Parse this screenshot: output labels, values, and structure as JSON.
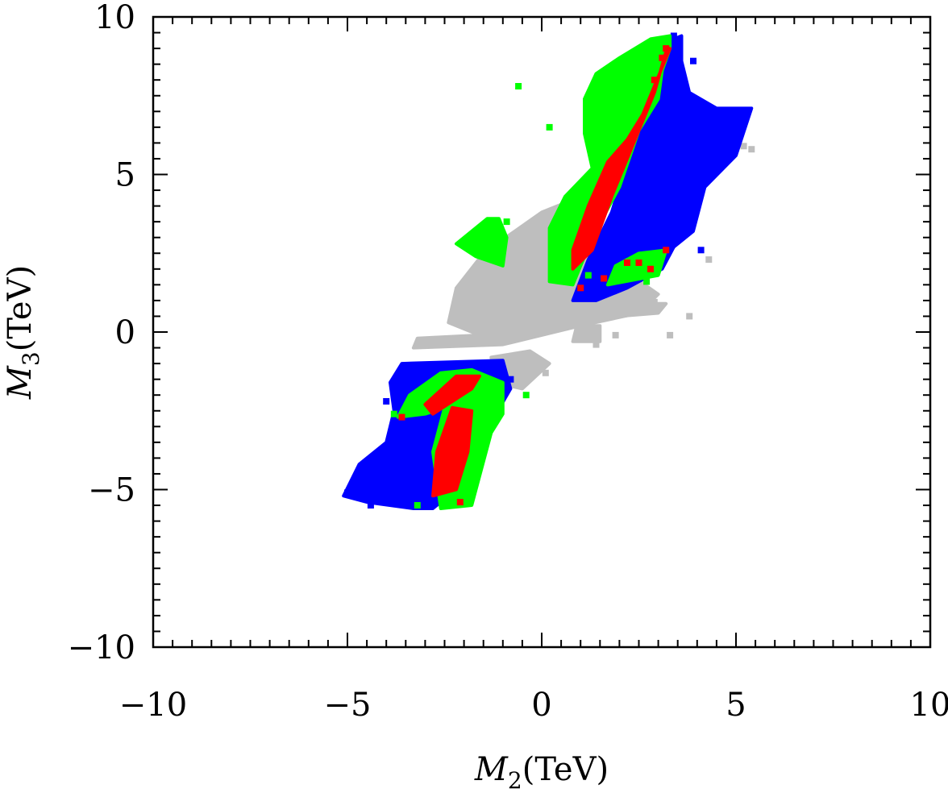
{
  "chart_data": {
    "type": "scatter",
    "title": "",
    "xlabel": {
      "var": "M",
      "sub": "2",
      "unit": "(TeV)"
    },
    "ylabel": {
      "var": "M",
      "sub": "3",
      "unit": "(TeV)"
    },
    "xlim": [
      -10,
      10
    ],
    "ylim": [
      -10,
      10
    ],
    "x_major_ticks": [
      -10,
      -5,
      0,
      5,
      10
    ],
    "y_major_ticks": [
      -10,
      -5,
      0,
      5,
      10
    ],
    "x_tick_labels": [
      "−10",
      "−5",
      "0",
      "5",
      "10"
    ],
    "y_tick_labels": [
      "−10",
      "−5",
      "0",
      "5",
      "10"
    ],
    "minor_tick_step": 0.5,
    "grid": false,
    "legend": "none",
    "colors": {
      "gray": "#bebebe",
      "blue": "#0000ff",
      "green": "#00ff00",
      "red": "#ff0000"
    },
    "series": [
      {
        "color_key": "gray",
        "regions": [
          [
            [
              -3.3,
              -0.5
            ],
            [
              -1.0,
              -0.4
            ],
            [
              1.0,
              0.2
            ],
            [
              2.5,
              0.6
            ],
            [
              3.0,
              1.2
            ],
            [
              2.3,
              1.8
            ],
            [
              1.5,
              3.0
            ],
            [
              0.8,
              4.2
            ],
            [
              0,
              3.8
            ],
            [
              -1.5,
              2.5
            ],
            [
              -2.2,
              1.4
            ],
            [
              -2.4,
              0.3
            ],
            [
              -1.6,
              -0.1
            ],
            [
              -3.2,
              -0.2
            ]
          ],
          [
            [
              -1.3,
              -0.8
            ],
            [
              -0.3,
              -0.6
            ],
            [
              0.2,
              -1.0
            ],
            [
              -0.5,
              -1.8
            ],
            [
              -1.2,
              -1.6
            ]
          ],
          [
            [
              2.0,
              0.5
            ],
            [
              3.0,
              0.6
            ],
            [
              3.2,
              0.9
            ],
            [
              2.2,
              0.9
            ]
          ],
          [
            [
              0.8,
              -0.3
            ],
            [
              1.5,
              -0.3
            ],
            [
              1.5,
              0.2
            ],
            [
              0.9,
              0.2
            ]
          ]
        ],
        "points": [
          [
            3.8,
            0.5
          ],
          [
            2.9,
            0.95
          ],
          [
            1.9,
            -0.1
          ],
          [
            3.3,
            -0.1
          ],
          [
            0.1,
            -1.3
          ],
          [
            -0.2,
            -1.1
          ],
          [
            5.2,
            5.9
          ],
          [
            5.4,
            5.8
          ],
          [
            1.4,
            -0.4
          ],
          [
            4.3,
            2.3
          ]
        ]
      },
      {
        "color_key": "blue",
        "regions": [
          [
            [
              0.8,
              1.0
            ],
            [
              1.2,
              2.3
            ],
            [
              1.8,
              3.8
            ],
            [
              2.4,
              6.2
            ],
            [
              2.9,
              7.8
            ],
            [
              3.2,
              9.2
            ],
            [
              3.6,
              9.4
            ],
            [
              3.6,
              8.6
            ],
            [
              3.8,
              7.6
            ],
            [
              4.5,
              7.1
            ],
            [
              5.4,
              7.1
            ],
            [
              5.0,
              5.6
            ],
            [
              4.2,
              4.6
            ],
            [
              3.9,
              3.2
            ],
            [
              3.4,
              2.7
            ],
            [
              3.1,
              2.0
            ],
            [
              2.2,
              1.4
            ],
            [
              1.4,
              1.0
            ]
          ],
          [
            [
              -3.6,
              -1.0
            ],
            [
              -1.0,
              -0.9
            ],
            [
              -0.8,
              -1.8
            ],
            [
              -1.6,
              -3.5
            ],
            [
              -2.2,
              -5.0
            ],
            [
              -2.8,
              -5.6
            ],
            [
              -3.3,
              -5.6
            ],
            [
              -4.5,
              -5.4
            ],
            [
              -5.1,
              -5.2
            ],
            [
              -4.7,
              -4.2
            ],
            [
              -4.0,
              -3.5
            ],
            [
              -3.8,
              -2.5
            ],
            [
              -3.9,
              -1.6
            ]
          ]
        ],
        "points": [
          [
            5.3,
            7.0
          ],
          [
            3.9,
            8.6
          ],
          [
            3.4,
            9.4
          ],
          [
            -5.0,
            -5.1
          ],
          [
            -4.4,
            -5.5
          ],
          [
            -4.0,
            -2.2
          ],
          [
            3.1,
            2.5
          ],
          [
            4.1,
            2.6
          ],
          [
            -0.8,
            -1.5
          ]
        ]
      },
      {
        "color_key": "green",
        "regions": [
          [
            [
              0.2,
              1.6
            ],
            [
              0.8,
              1.5
            ],
            [
              1.3,
              3.0
            ],
            [
              2.0,
              4.6
            ],
            [
              2.5,
              6.4
            ],
            [
              3.0,
              7.4
            ],
            [
              3.1,
              8.3
            ],
            [
              3.3,
              9.0
            ],
            [
              3.3,
              9.4
            ],
            [
              2.8,
              9.3
            ],
            [
              2.0,
              8.7
            ],
            [
              1.4,
              8.2
            ],
            [
              1.1,
              7.4
            ],
            [
              1.1,
              6.3
            ],
            [
              1.3,
              5.2
            ],
            [
              0.6,
              4.3
            ],
            [
              0.2,
              3.3
            ]
          ],
          [
            [
              -2.2,
              2.8
            ],
            [
              -1.4,
              3.6
            ],
            [
              -1.1,
              3.6
            ],
            [
              -0.9,
              3.0
            ],
            [
              -1.0,
              2.1
            ],
            [
              -1.7,
              2.4
            ]
          ],
          [
            [
              1.7,
              1.5
            ],
            [
              3.0,
              1.8
            ],
            [
              3.2,
              2.6
            ],
            [
              2.5,
              2.5
            ],
            [
              1.9,
              2.1
            ]
          ],
          [
            [
              -3.4,
              -2.0
            ],
            [
              -2.6,
              -1.3
            ],
            [
              -1.8,
              -1.2
            ],
            [
              -1.0,
              -1.6
            ],
            [
              -1.0,
              -2.6
            ],
            [
              -1.3,
              -3.2
            ],
            [
              -1.8,
              -5.5
            ],
            [
              -2.6,
              -5.6
            ],
            [
              -2.8,
              -3.8
            ],
            [
              -2.5,
              -2.4
            ],
            [
              -3.0,
              -2.6
            ],
            [
              -3.7,
              -2.7
            ]
          ]
        ],
        "points": [
          [
            -0.4,
            -2.0
          ],
          [
            0.2,
            6.5
          ],
          [
            -0.6,
            7.8
          ],
          [
            1.3,
            4.1
          ],
          [
            -3.2,
            -5.5
          ],
          [
            1.2,
            1.8
          ],
          [
            2.0,
            1.7
          ],
          [
            2.7,
            1.6
          ],
          [
            -0.9,
            3.5
          ],
          [
            -3.8,
            -2.6
          ],
          [
            -1.1,
            -2.4
          ]
        ]
      },
      {
        "color_key": "red",
        "regions": [
          [
            [
              0.8,
              2.0
            ],
            [
              1.3,
              2.6
            ],
            [
              1.8,
              4.3
            ],
            [
              2.4,
              6.1
            ],
            [
              2.9,
              7.6
            ],
            [
              3.2,
              8.9
            ],
            [
              3.3,
              9.0
            ],
            [
              3.0,
              8.1
            ],
            [
              2.6,
              6.9
            ],
            [
              2.2,
              6.1
            ],
            [
              1.7,
              5.4
            ],
            [
              1.2,
              4.0
            ],
            [
              0.8,
              2.6
            ]
          ],
          [
            [
              -3.0,
              -2.3
            ],
            [
              -2.2,
              -1.4
            ],
            [
              -1.6,
              -1.4
            ],
            [
              -1.8,
              -1.8
            ],
            [
              -2.8,
              -2.6
            ]
          ],
          [
            [
              -2.8,
              -5.2
            ],
            [
              -2.2,
              -5.0
            ],
            [
              -1.9,
              -3.8
            ],
            [
              -1.8,
              -2.5
            ],
            [
              -2.3,
              -2.4
            ],
            [
              -2.7,
              -3.8
            ]
          ]
        ],
        "points": [
          [
            2.2,
            2.2
          ],
          [
            2.8,
            2.0
          ],
          [
            2.5,
            2.2
          ],
          [
            1.6,
            1.7
          ],
          [
            3.2,
            9.0
          ],
          [
            3.1,
            8.7
          ],
          [
            -3.6,
            -2.7
          ],
          [
            -2.9,
            -2.3
          ],
          [
            -2.1,
            -5.4
          ],
          [
            1.0,
            1.4
          ],
          [
            3.2,
            2.6
          ],
          [
            2.9,
            8.0
          ],
          [
            -2.1,
            -2.7
          ]
        ]
      }
    ]
  }
}
